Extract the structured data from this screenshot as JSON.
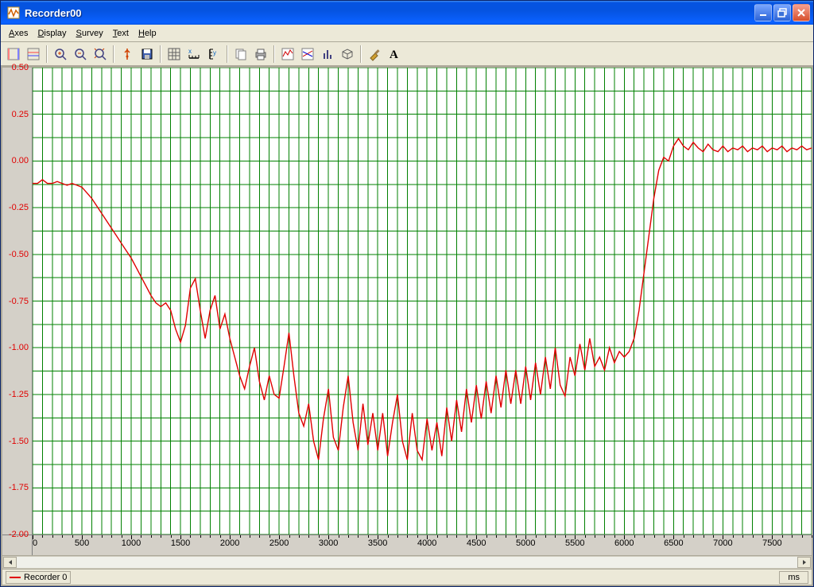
{
  "window": {
    "title": "Recorder00"
  },
  "menu": {
    "items": [
      {
        "label": "Axes",
        "u": "A",
        "rest": "xes"
      },
      {
        "label": "Display",
        "u": "D",
        "rest": "isplay"
      },
      {
        "label": "Survey",
        "u": "S",
        "rest": "urvey"
      },
      {
        "label": "Text",
        "u": "T",
        "rest": "ext"
      },
      {
        "label": "Help",
        "u": "H",
        "rest": "elp"
      }
    ]
  },
  "legend": {
    "series_label": "Recorder 0",
    "units": "ms"
  },
  "chart": {
    "type": "line",
    "series_color": "#e00000",
    "grid_color": "#008000",
    "background_color": "#ffffff",
    "axis_bg": "#d4d0c8",
    "line_width": 1.4,
    "y": {
      "min": -2.0,
      "max": 0.5,
      "step": 0.25,
      "labels": [
        "0.50",
        "0.25",
        "0.00",
        "-0.25",
        "-0.50",
        "-0.75",
        "-1.00",
        "-1.25",
        "-1.50",
        "-1.75",
        "-2.00"
      ],
      "label_color": "#e00000",
      "label_fontsize": 11
    },
    "x": {
      "min": 0,
      "max": 7900,
      "tick_step": 500,
      "subgrid_step": 100,
      "labels": [
        "0",
        "500",
        "1000",
        "1500",
        "2000",
        "2500",
        "3000",
        "3500",
        "4000",
        "4500",
        "5000",
        "5500",
        "6000",
        "6500",
        "7000",
        "7500"
      ],
      "label_color": "#000000",
      "label_fontsize": 11
    },
    "data": [
      [
        0,
        -0.12
      ],
      [
        50,
        -0.12
      ],
      [
        100,
        -0.1
      ],
      [
        150,
        -0.12
      ],
      [
        200,
        -0.12
      ],
      [
        250,
        -0.11
      ],
      [
        300,
        -0.12
      ],
      [
        350,
        -0.13
      ],
      [
        400,
        -0.12
      ],
      [
        450,
        -0.13
      ],
      [
        500,
        -0.14
      ],
      [
        550,
        -0.17
      ],
      [
        600,
        -0.2
      ],
      [
        650,
        -0.24
      ],
      [
        700,
        -0.28
      ],
      [
        750,
        -0.32
      ],
      [
        800,
        -0.36
      ],
      [
        850,
        -0.4
      ],
      [
        900,
        -0.44
      ],
      [
        950,
        -0.48
      ],
      [
        1000,
        -0.52
      ],
      [
        1050,
        -0.57
      ],
      [
        1100,
        -0.62
      ],
      [
        1150,
        -0.67
      ],
      [
        1200,
        -0.72
      ],
      [
        1250,
        -0.76
      ],
      [
        1300,
        -0.78
      ],
      [
        1350,
        -0.76
      ],
      [
        1400,
        -0.8
      ],
      [
        1450,
        -0.9
      ],
      [
        1500,
        -0.97
      ],
      [
        1550,
        -0.88
      ],
      [
        1600,
        -0.68
      ],
      [
        1650,
        -0.63
      ],
      [
        1700,
        -0.8
      ],
      [
        1750,
        -0.95
      ],
      [
        1800,
        -0.8
      ],
      [
        1850,
        -0.72
      ],
      [
        1900,
        -0.9
      ],
      [
        1950,
        -0.82
      ],
      [
        2000,
        -0.95
      ],
      [
        2050,
        -1.05
      ],
      [
        2100,
        -1.15
      ],
      [
        2150,
        -1.22
      ],
      [
        2200,
        -1.1
      ],
      [
        2250,
        -1.0
      ],
      [
        2300,
        -1.18
      ],
      [
        2350,
        -1.28
      ],
      [
        2400,
        -1.15
      ],
      [
        2450,
        -1.25
      ],
      [
        2500,
        -1.27
      ],
      [
        2550,
        -1.1
      ],
      [
        2600,
        -0.92
      ],
      [
        2650,
        -1.15
      ],
      [
        2700,
        -1.35
      ],
      [
        2750,
        -1.42
      ],
      [
        2800,
        -1.3
      ],
      [
        2850,
        -1.5
      ],
      [
        2900,
        -1.6
      ],
      [
        2950,
        -1.38
      ],
      [
        3000,
        -1.22
      ],
      [
        3050,
        -1.48
      ],
      [
        3100,
        -1.55
      ],
      [
        3150,
        -1.32
      ],
      [
        3200,
        -1.15
      ],
      [
        3250,
        -1.4
      ],
      [
        3300,
        -1.55
      ],
      [
        3350,
        -1.3
      ],
      [
        3400,
        -1.52
      ],
      [
        3450,
        -1.35
      ],
      [
        3500,
        -1.55
      ],
      [
        3550,
        -1.35
      ],
      [
        3600,
        -1.58
      ],
      [
        3650,
        -1.4
      ],
      [
        3700,
        -1.25
      ],
      [
        3750,
        -1.5
      ],
      [
        3800,
        -1.6
      ],
      [
        3850,
        -1.35
      ],
      [
        3900,
        -1.55
      ],
      [
        3950,
        -1.6
      ],
      [
        4000,
        -1.38
      ],
      [
        4050,
        -1.55
      ],
      [
        4100,
        -1.4
      ],
      [
        4150,
        -1.58
      ],
      [
        4200,
        -1.32
      ],
      [
        4250,
        -1.5
      ],
      [
        4300,
        -1.28
      ],
      [
        4350,
        -1.45
      ],
      [
        4400,
        -1.22
      ],
      [
        4450,
        -1.4
      ],
      [
        4500,
        -1.2
      ],
      [
        4550,
        -1.38
      ],
      [
        4600,
        -1.18
      ],
      [
        4650,
        -1.35
      ],
      [
        4700,
        -1.15
      ],
      [
        4750,
        -1.32
      ],
      [
        4800,
        -1.12
      ],
      [
        4850,
        -1.3
      ],
      [
        4900,
        -1.12
      ],
      [
        4950,
        -1.3
      ],
      [
        5000,
        -1.1
      ],
      [
        5050,
        -1.28
      ],
      [
        5100,
        -1.08
      ],
      [
        5150,
        -1.25
      ],
      [
        5200,
        -1.05
      ],
      [
        5250,
        -1.22
      ],
      [
        5300,
        -1.0
      ],
      [
        5350,
        -1.2
      ],
      [
        5400,
        -1.26
      ],
      [
        5450,
        -1.05
      ],
      [
        5500,
        -1.15
      ],
      [
        5550,
        -0.98
      ],
      [
        5600,
        -1.12
      ],
      [
        5650,
        -0.95
      ],
      [
        5700,
        -1.1
      ],
      [
        5750,
        -1.05
      ],
      [
        5800,
        -1.12
      ],
      [
        5850,
        -1.0
      ],
      [
        5900,
        -1.08
      ],
      [
        5950,
        -1.02
      ],
      [
        6000,
        -1.05
      ],
      [
        6050,
        -1.02
      ],
      [
        6100,
        -0.95
      ],
      [
        6150,
        -0.8
      ],
      [
        6200,
        -0.6
      ],
      [
        6250,
        -0.4
      ],
      [
        6300,
        -0.2
      ],
      [
        6350,
        -0.05
      ],
      [
        6400,
        0.02
      ],
      [
        6450,
        0.0
      ],
      [
        6500,
        0.08
      ],
      [
        6550,
        0.12
      ],
      [
        6600,
        0.08
      ],
      [
        6650,
        0.06
      ],
      [
        6700,
        0.1
      ],
      [
        6750,
        0.07
      ],
      [
        6800,
        0.05
      ],
      [
        6850,
        0.09
      ],
      [
        6900,
        0.06
      ],
      [
        6950,
        0.05
      ],
      [
        7000,
        0.08
      ],
      [
        7050,
        0.05
      ],
      [
        7100,
        0.07
      ],
      [
        7150,
        0.06
      ],
      [
        7200,
        0.08
      ],
      [
        7250,
        0.05
      ],
      [
        7300,
        0.07
      ],
      [
        7350,
        0.06
      ],
      [
        7400,
        0.08
      ],
      [
        7450,
        0.05
      ],
      [
        7500,
        0.07
      ],
      [
        7550,
        0.06
      ],
      [
        7600,
        0.08
      ],
      [
        7650,
        0.05
      ],
      [
        7700,
        0.07
      ],
      [
        7750,
        0.06
      ],
      [
        7800,
        0.08
      ],
      [
        7850,
        0.06
      ],
      [
        7900,
        0.07
      ]
    ]
  }
}
